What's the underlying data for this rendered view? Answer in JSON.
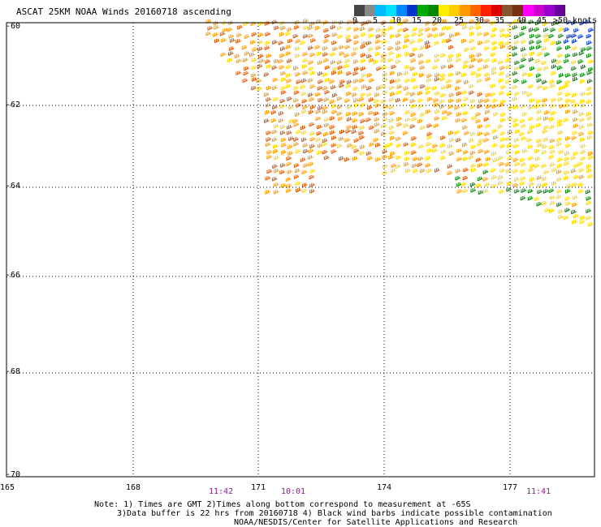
{
  "title": "ASCAT 25KM NOAA Winds 20160718 ascending",
  "colorbar": {
    "segments": [
      "#444444",
      "#888888",
      "#00bbff",
      "#00e0ff",
      "#0088ff",
      "#0033cc",
      "#00aa00",
      "#008800",
      "#ffee00",
      "#ffcc00",
      "#ff9900",
      "#ff6600",
      "#ff2200",
      "#dd0000",
      "#885533",
      "#773311",
      "#ff00ff",
      "#cc00cc",
      "#9900cc",
      "#660099"
    ],
    "labels": [
      "0",
      "5",
      "10",
      "15",
      "20",
      "25",
      "30",
      "35",
      "40",
      "45",
      ">50 knots"
    ]
  },
  "map": {
    "lat_labels": [
      "-60",
      "-62",
      "-64",
      "-66",
      "-68",
      "-70"
    ],
    "lon_labels": [
      "165",
      "168",
      "171",
      "174",
      "177"
    ],
    "times": [
      "11:42",
      "10:01",
      "11:41"
    ]
  },
  "notes": [
    "Note: 1) Times are GMT 2)Times along bottom correspond to measurement at -65S",
    "3)Data buffer is 22 hrs from 20160718 4) Black wind barbs indicate possible contamination",
    "NOAA/NESDIS/Center for Satellite Applications and Research"
  ],
  "colors": {
    "speed_20": "#ffd700",
    "speed_25": "#ff9900",
    "speed_30": "#dd5500",
    "speed_15": "#008800",
    "speed_10": "#0033cc",
    "grid": "#000000",
    "time_text": "#8a1a8a"
  }
}
